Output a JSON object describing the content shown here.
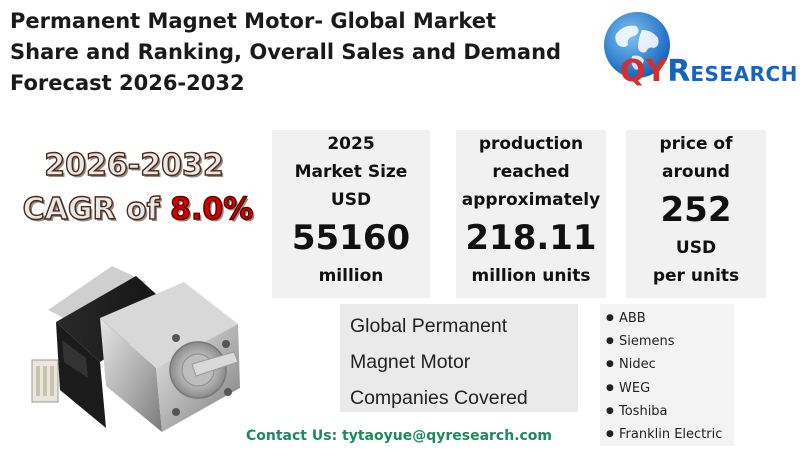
{
  "title": {
    "line1": "Permanent Magnet Motor- Global Market",
    "line2": "Share and Ranking, Overall Sales and Demand",
    "line3": "Forecast 2026-2032"
  },
  "logo": {
    "q": "Q",
    "y": "Y",
    "r": "R",
    "rest": "ESEARCH",
    "colors": {
      "red": "#d32f2f",
      "blue": "#1565c0"
    }
  },
  "cagr": {
    "years": "2026-2032",
    "prefix": "CAGR of ",
    "value": "8.0%",
    "value_color": "#d50000"
  },
  "stats": [
    {
      "line1": "2025",
      "line2": "Market Size",
      "line3": "USD",
      "value": "55160",
      "unit": "million"
    },
    {
      "line1": "production",
      "line2": "reached",
      "line3": "approximately",
      "value": "218.11",
      "unit": "million units"
    },
    {
      "line1": "price of",
      "line2": "around",
      "value": "252",
      "unit1": "USD",
      "unit2": "per units"
    }
  ],
  "companies": {
    "title_line1": "Global Permanent",
    "title_line2": "Magnet Motor",
    "title_line3": "Companies Covered",
    "list": [
      "ABB",
      "Siemens",
      "Nidec",
      "WEG",
      "Toshiba",
      "Franklin Electric"
    ],
    "bullet": "●"
  },
  "contact": "Contact Us: tytaoyue@qyresearch.com",
  "contact_color": "#1d8a5a",
  "image": {
    "icon": "stepper-motor-image"
  }
}
